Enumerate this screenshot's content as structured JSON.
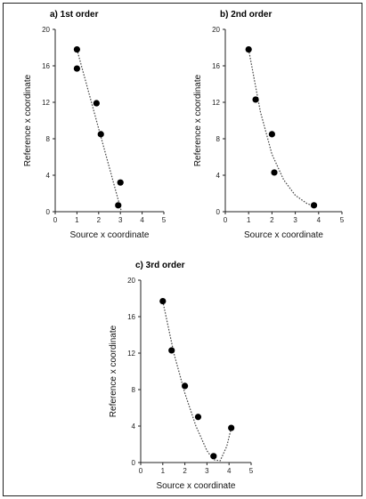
{
  "chart_data": [
    {
      "type": "scatter",
      "title": "a)  1st order",
      "xlabel": "Source x coordinate",
      "ylabel": "Reference x coordinate",
      "xlim": [
        0,
        5
      ],
      "ylim": [
        0,
        20
      ],
      "xticks": [
        "0",
        "1",
        "2",
        "3",
        "4",
        "5"
      ],
      "yticks": [
        "0",
        "4",
        "8",
        "12",
        "16",
        "20"
      ],
      "points": [
        [
          1.0,
          17.8
        ],
        [
          1.0,
          15.7
        ],
        [
          1.9,
          11.9
        ],
        [
          2.1,
          8.5
        ],
        [
          3.0,
          3.2
        ],
        [
          2.9,
          0.7
        ]
      ],
      "fit": {
        "order": 1,
        "line": [
          [
            1.0,
            17.8
          ],
          [
            3.05,
            0.0
          ]
        ]
      }
    },
    {
      "type": "scatter",
      "title": "b)  2nd order",
      "xlabel": "Source x coordinate",
      "ylabel": "Reference x coordinate",
      "xlim": [
        0,
        5
      ],
      "ylim": [
        0,
        20
      ],
      "xticks": [
        "0",
        "1",
        "2",
        "3",
        "4",
        "5"
      ],
      "yticks": [
        "0",
        "4",
        "8",
        "12",
        "16",
        "20"
      ],
      "points": [
        [
          1.0,
          17.8
        ],
        [
          1.3,
          12.3
        ],
        [
          2.0,
          8.5
        ],
        [
          2.1,
          4.3
        ],
        [
          3.8,
          0.7
        ]
      ],
      "fit": {
        "order": 2,
        "line": [
          [
            1.0,
            17.8
          ],
          [
            1.5,
            11.0
          ],
          [
            2.0,
            6.3
          ],
          [
            2.5,
            3.5
          ],
          [
            3.0,
            1.8
          ],
          [
            3.5,
            0.9
          ],
          [
            3.8,
            0.6
          ]
        ]
      }
    },
    {
      "type": "scatter",
      "title": "c)  3rd order",
      "xlabel": "Source x coordinate",
      "ylabel": "Reference x coordinate",
      "xlim": [
        0,
        5
      ],
      "ylim": [
        0,
        20
      ],
      "xticks": [
        "0",
        "1",
        "2",
        "3",
        "4",
        "5"
      ],
      "yticks": [
        "0",
        "4",
        "8",
        "12",
        "16",
        "20"
      ],
      "points": [
        [
          1.0,
          17.7
        ],
        [
          1.4,
          12.3
        ],
        [
          2.0,
          8.4
        ],
        [
          2.6,
          5.0
        ],
        [
          3.3,
          0.7
        ],
        [
          4.1,
          3.8
        ]
      ],
      "fit": {
        "order": 3,
        "line": [
          [
            1.0,
            17.7
          ],
          [
            1.5,
            12.0
          ],
          [
            2.0,
            7.6
          ],
          [
            2.5,
            4.0
          ],
          [
            3.0,
            1.3
          ],
          [
            3.3,
            0.3
          ],
          [
            3.6,
            0.2
          ],
          [
            3.9,
            1.8
          ],
          [
            4.1,
            3.8
          ]
        ]
      }
    }
  ]
}
